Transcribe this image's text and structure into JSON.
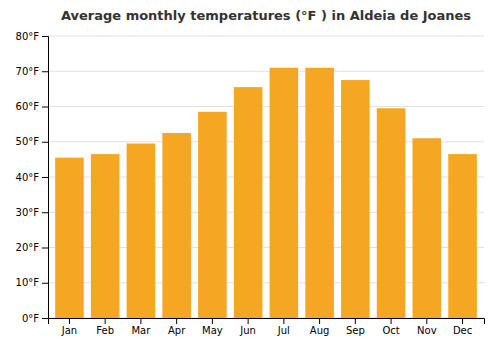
{
  "chart_data": {
    "type": "bar",
    "title": "Average monthly temperatures (°F ) in Aldeia de Joanes",
    "categories": [
      "Jan",
      "Feb",
      "Mar",
      "Apr",
      "May",
      "Jun",
      "Jul",
      "Aug",
      "Sep",
      "Oct",
      "Nov",
      "Dec"
    ],
    "values": [
      45.5,
      46.5,
      49.5,
      52.5,
      58.5,
      65.5,
      71.0,
      71.0,
      67.5,
      59.5,
      51.0,
      46.5
    ],
    "color": "#F5A623",
    "ylim": [
      0,
      80
    ],
    "yticks": [
      {
        "value": 0,
        "label": "0°F"
      },
      {
        "value": 10,
        "label": "10°F"
      },
      {
        "value": 20,
        "label": "20°F"
      },
      {
        "value": 30,
        "label": "30°F"
      },
      {
        "value": 40,
        "label": "40°F"
      },
      {
        "value": 50,
        "label": "50°F"
      },
      {
        "value": 60,
        "label": "60°F"
      },
      {
        "value": 70,
        "label": "70°F"
      },
      {
        "value": 80,
        "label": "80°F"
      }
    ],
    "grid": true
  }
}
